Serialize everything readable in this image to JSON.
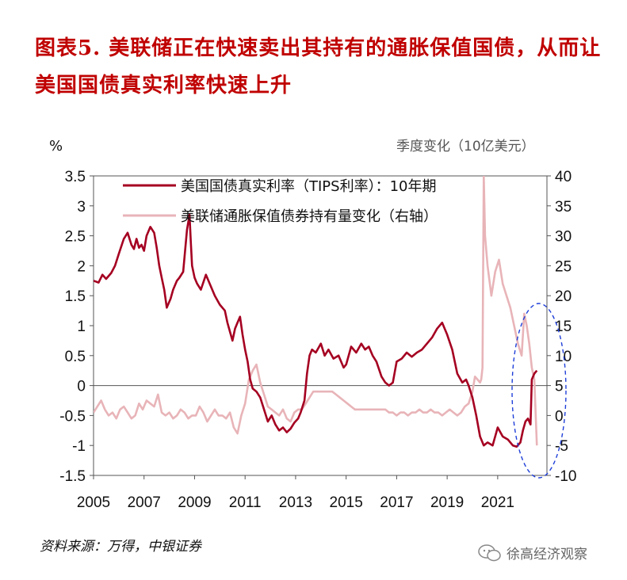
{
  "title": "图表5.  美联储正在快速卖出其持有的通胀保值国债，从而让美国国债真实利率快速上升",
  "source": "资料来源：万得，中银证券",
  "watermark": "徐高经济观察",
  "chart_data": {
    "type": "line",
    "left_unit": "%",
    "right_unit": "季度变化（10亿美元）",
    "y_left": {
      "min": -1.5,
      "max": 3.5,
      "ticks": [
        "3.5",
        "3",
        "2.5",
        "2",
        "1.5",
        "1",
        "0.5",
        "0",
        "-0.5",
        "-1",
        "-1.5"
      ]
    },
    "y_right": {
      "min": -10,
      "max": 40,
      "ticks": [
        "40",
        "35",
        "30",
        "25",
        "20",
        "15",
        "10",
        "5",
        "0",
        "-5",
        "-10"
      ]
    },
    "x_axis": {
      "min": 2005,
      "max": 2022.95,
      "ticks": [
        "2005",
        "2007",
        "2009",
        "2011",
        "2013",
        "2015",
        "2017",
        "2019",
        "2021"
      ]
    },
    "colors": {
      "tips": "#a50021",
      "fed": "#e8b4b8",
      "ellipse": "#1f3fd8"
    },
    "series": [
      {
        "name": "美国国债真实利率（TIPS利率）：10年期",
        "axis": "left",
        "x": [
          2005.0,
          2005.2,
          2005.35,
          2005.5,
          2005.7,
          2005.85,
          2006.0,
          2006.2,
          2006.35,
          2006.5,
          2006.6,
          2006.7,
          2006.8,
          2006.9,
          2007.0,
          2007.1,
          2007.25,
          2007.4,
          2007.5,
          2007.6,
          2007.7,
          2007.8,
          2007.9,
          2008.05,
          2008.15,
          2008.3,
          2008.4,
          2008.55,
          2008.7,
          2008.8,
          2008.85,
          2008.9,
          2009.0,
          2009.1,
          2009.25,
          2009.45,
          2009.6,
          2009.8,
          2010.0,
          2010.2,
          2010.3,
          2010.4,
          2010.5,
          2010.6,
          2010.7,
          2010.8,
          2010.9,
          2011.0,
          2011.1,
          2011.2,
          2011.3,
          2011.45,
          2011.6,
          2011.75,
          2011.9,
          2012.05,
          2012.2,
          2012.35,
          2012.5,
          2012.65,
          2012.8,
          2012.95,
          2013.1,
          2013.2,
          2013.35,
          2013.45,
          2013.55,
          2013.65,
          2013.8,
          2014.0,
          2014.15,
          2014.3,
          2014.5,
          2014.7,
          2014.9,
          2015.0,
          2015.2,
          2015.4,
          2015.6,
          2015.75,
          2015.9,
          2016.05,
          2016.2,
          2016.4,
          2016.55,
          2016.7,
          2016.85,
          2017.0,
          2017.2,
          2017.4,
          2017.6,
          2017.8,
          2018.0,
          2018.2,
          2018.4,
          2018.6,
          2018.8,
          2019.0,
          2019.2,
          2019.4,
          2019.6,
          2019.75,
          2019.85,
          2020.0,
          2020.15,
          2020.3,
          2020.45,
          2020.6,
          2020.8,
          2021.0,
          2021.2,
          2021.4,
          2021.6,
          2021.75,
          2021.9,
          2022.0,
          2022.1,
          2022.2,
          2022.3,
          2022.35,
          2022.45,
          2022.55
        ],
        "values": [
          1.75,
          1.72,
          1.85,
          1.78,
          1.88,
          2.0,
          2.2,
          2.45,
          2.55,
          2.35,
          2.28,
          2.45,
          2.3,
          2.35,
          2.25,
          2.5,
          2.65,
          2.55,
          2.3,
          2.0,
          1.8,
          1.6,
          1.3,
          1.45,
          1.6,
          1.75,
          1.8,
          1.9,
          2.6,
          2.85,
          2.4,
          2.0,
          1.8,
          1.7,
          1.6,
          1.85,
          1.7,
          1.5,
          1.35,
          1.25,
          1.05,
          0.9,
          0.75,
          0.95,
          1.05,
          1.15,
          0.85,
          0.6,
          0.4,
          0.1,
          -0.05,
          -0.1,
          -0.2,
          -0.4,
          -0.6,
          -0.5,
          -0.65,
          -0.75,
          -0.7,
          -0.78,
          -0.72,
          -0.62,
          -0.55,
          -0.45,
          -0.25,
          0.2,
          0.5,
          0.6,
          0.55,
          0.7,
          0.5,
          0.6,
          0.45,
          0.5,
          0.3,
          0.35,
          0.65,
          0.55,
          0.7,
          0.6,
          0.65,
          0.5,
          0.4,
          0.15,
          0.05,
          0.0,
          0.05,
          0.4,
          0.45,
          0.55,
          0.48,
          0.55,
          0.6,
          0.7,
          0.8,
          0.95,
          1.05,
          0.85,
          0.6,
          0.2,
          0.05,
          0.1,
          0.0,
          -0.2,
          -0.5,
          -0.85,
          -1.0,
          -0.95,
          -1.0,
          -0.7,
          -0.85,
          -0.9,
          -1.0,
          -1.02,
          -0.95,
          -0.75,
          -0.6,
          -0.55,
          -0.65,
          0.1,
          0.2,
          0.25
        ]
      },
      {
        "name": "美联储通胀保值债券持有量变化（右轴）",
        "axis": "right",
        "x": [
          2005.0,
          2005.15,
          2005.3,
          2005.45,
          2005.6,
          2005.75,
          2005.9,
          2006.05,
          2006.2,
          2006.35,
          2006.5,
          2006.65,
          2006.8,
          2006.95,
          2007.1,
          2007.25,
          2007.4,
          2007.55,
          2007.7,
          2007.85,
          2008.0,
          2008.15,
          2008.3,
          2008.45,
          2008.6,
          2008.75,
          2008.9,
          2009.05,
          2009.2,
          2009.35,
          2009.5,
          2009.65,
          2009.8,
          2009.95,
          2010.1,
          2010.25,
          2010.4,
          2010.55,
          2010.7,
          2010.85,
          2011.0,
          2011.15,
          2011.3,
          2011.45,
          2011.6,
          2011.75,
          2011.9,
          2012.05,
          2012.2,
          2012.35,
          2012.5,
          2012.65,
          2012.8,
          2012.95,
          2013.1,
          2013.25,
          2013.4,
          2013.55,
          2013.7,
          2013.85,
          2014.0,
          2014.15,
          2014.3,
          2014.45,
          2014.6,
          2014.75,
          2014.9,
          2015.05,
          2015.2,
          2015.35,
          2015.5,
          2015.65,
          2015.8,
          2015.95,
          2016.1,
          2016.25,
          2016.4,
          2016.55,
          2016.7,
          2016.85,
          2017.0,
          2017.15,
          2017.3,
          2017.45,
          2017.6,
          2017.75,
          2017.9,
          2018.05,
          2018.2,
          2018.35,
          2018.5,
          2018.65,
          2018.8,
          2018.95,
          2019.1,
          2019.25,
          2019.4,
          2019.55,
          2019.7,
          2019.85,
          2020.0,
          2020.1,
          2020.2,
          2020.3,
          2020.35,
          2020.4,
          2020.45,
          2020.5,
          2020.6,
          2020.75,
          2020.9,
          2021.05,
          2021.2,
          2021.35,
          2021.5,
          2021.65,
          2021.8,
          2021.95,
          2022.05,
          2022.15,
          2022.25,
          2022.35,
          2022.45,
          2022.55
        ],
        "values": [
          0.5,
          1.5,
          2.5,
          1.0,
          0.0,
          0.5,
          -0.5,
          1.0,
          1.5,
          0.5,
          -0.5,
          0.0,
          2.0,
          1.0,
          2.5,
          2.0,
          1.5,
          3.5,
          0.5,
          0.0,
          0.5,
          -0.5,
          0.0,
          1.0,
          0.5,
          -0.5,
          0.0,
          0.0,
          1.5,
          0.5,
          -1.0,
          0.0,
          1.0,
          0.0,
          0.0,
          -0.5,
          0.5,
          -2.0,
          -3.0,
          0.0,
          2.0,
          6.0,
          7.5,
          8.5,
          5.5,
          3.5,
          1.5,
          1.0,
          0.5,
          0.0,
          1.0,
          -0.5,
          -1.0,
          0.5,
          1.0,
          1.0,
          2.0,
          3.0,
          4.0,
          4.0,
          4.0,
          4.0,
          4.0,
          4.0,
          3.5,
          3.0,
          2.5,
          2.0,
          1.5,
          1.0,
          1.0,
          1.0,
          1.0,
          1.0,
          1.0,
          1.0,
          1.0,
          1.0,
          0.5,
          0.5,
          0.0,
          0.5,
          0.5,
          0.0,
          0.5,
          0.5,
          1.0,
          0.5,
          0.5,
          1.0,
          0.5,
          0.5,
          0.0,
          0.5,
          1.0,
          0.5,
          0.0,
          0.5,
          1.5,
          2.0,
          4.0,
          6.5,
          6.0,
          5.5,
          6.0,
          8.0,
          40.0,
          30.0,
          25.0,
          20.0,
          24.0,
          26.0,
          22.0,
          20.0,
          18.0,
          15.0,
          12.0,
          10.0,
          17.0,
          15.0,
          12.0,
          8.0,
          6.0,
          -5.0
        ]
      }
    ]
  }
}
